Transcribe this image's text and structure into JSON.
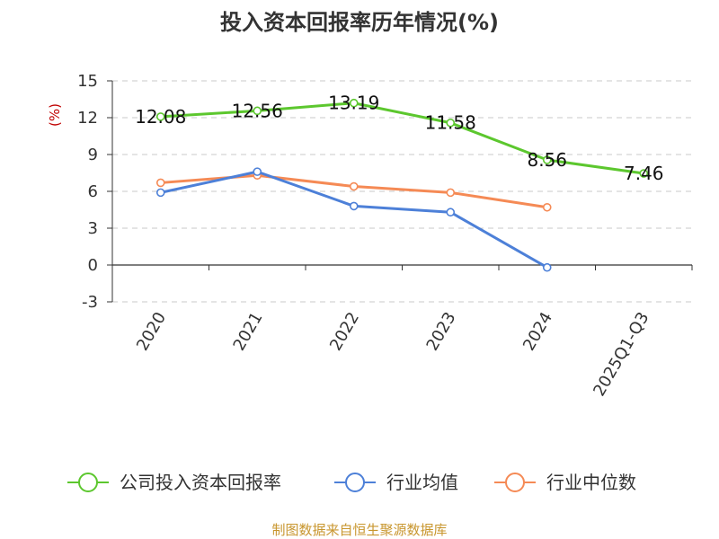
{
  "chart_data": {
    "type": "line",
    "title": "投入资本回报率历年情况(%)",
    "ylabel": "(%)",
    "ylim": [
      -3,
      15
    ],
    "yticks": [
      -3,
      0,
      3,
      6,
      9,
      12,
      15
    ],
    "categories": [
      "2020",
      "2021",
      "2022",
      "2023",
      "2024",
      "2025Q1-Q3"
    ],
    "grid": true,
    "legend_position": "bottom",
    "series": [
      {
        "name": "公司投入资本回报率",
        "color": "#5cc72e",
        "values": [
          12.08,
          12.56,
          13.19,
          11.58,
          8.56,
          7.46
        ],
        "labels": [
          "12.08",
          "12.56",
          "13.19",
          "11.58",
          "8.56",
          "7.46"
        ]
      },
      {
        "name": "行业均值",
        "color": "#4d80d8",
        "values": [
          5.9,
          7.6,
          4.8,
          4.3,
          -0.2,
          null
        ]
      },
      {
        "name": "行业中位数",
        "color": "#f58a55",
        "values": [
          6.7,
          7.3,
          6.4,
          5.9,
          4.7,
          null
        ]
      }
    ],
    "source": "制图数据来自恒生聚源数据库"
  }
}
